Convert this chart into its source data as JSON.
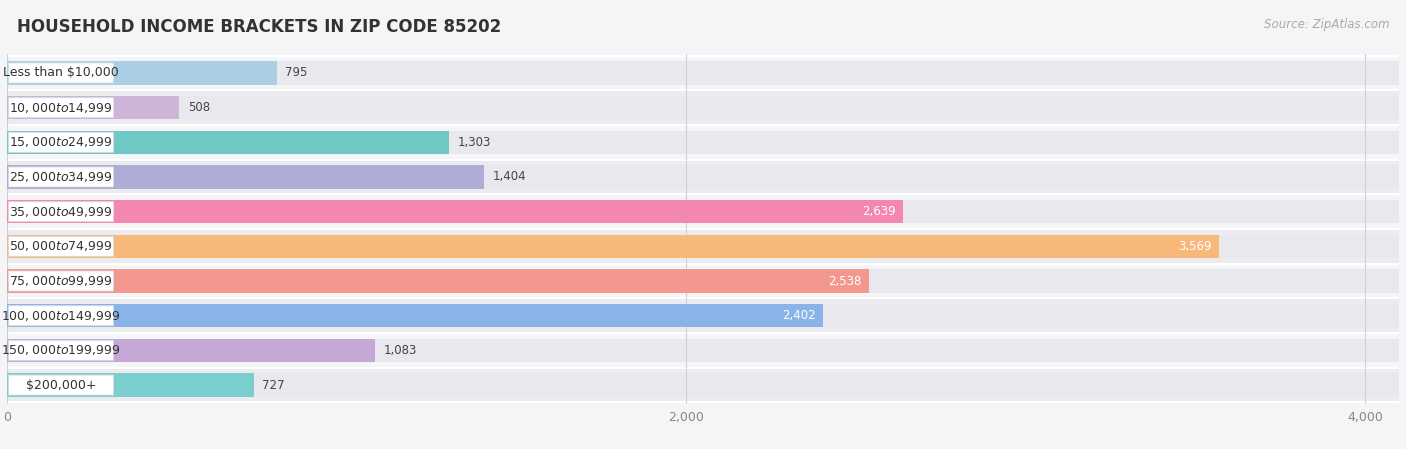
{
  "title": "HOUSEHOLD INCOME BRACKETS IN ZIP CODE 85202",
  "source": "Source: ZipAtlas.com",
  "categories": [
    "Less than $10,000",
    "$10,000 to $14,999",
    "$15,000 to $24,999",
    "$25,000 to $34,999",
    "$35,000 to $49,999",
    "$50,000 to $74,999",
    "$75,000 to $99,999",
    "$100,000 to $149,999",
    "$150,000 to $199,999",
    "$200,000+"
  ],
  "values": [
    795,
    508,
    1303,
    1404,
    2639,
    3569,
    2538,
    2402,
    1083,
    727
  ],
  "bar_colors": [
    "#aacfe4",
    "#cdb5d8",
    "#6ec8c6",
    "#adadd8",
    "#f487af",
    "#f7b87a",
    "#f2988e",
    "#8ab4e8",
    "#c5a8d5",
    "#7bcece"
  ],
  "bar_bg_color": "#e8e8ee",
  "row_bg_colors": [
    "#f5f5f8",
    "#ebebf0"
  ],
  "separator_color": "#ffffff",
  "grid_color": "#d0d0d8",
  "xmax": 4100,
  "xticks": [
    0,
    2000,
    4000
  ],
  "bar_height": 0.68,
  "label_color_dark": "#444444",
  "label_color_white": "#ffffff",
  "white_threshold": 1900,
  "background_color": "#f5f5f8",
  "title_fontsize": 12,
  "source_fontsize": 8.5,
  "tick_fontsize": 9,
  "label_fontsize": 8.5,
  "category_fontsize": 9,
  "pill_bg": "#ffffff",
  "pill_border": "#d8d8e0"
}
